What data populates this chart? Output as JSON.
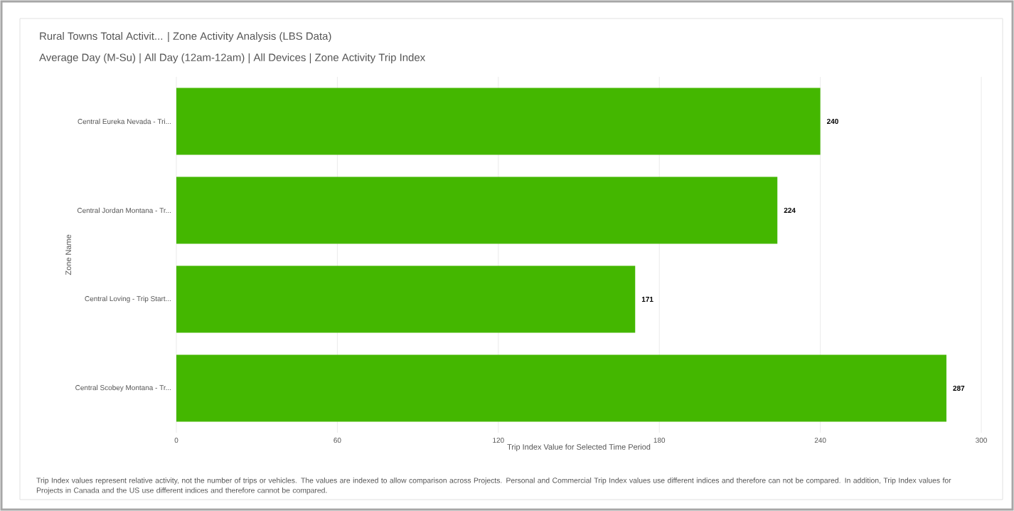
{
  "chart_data": {
    "type": "bar",
    "orientation": "horizontal",
    "title": "Rural Towns Total Activit... | Zone Activity Analysis (LBS Data)",
    "subtitle": "Average Day (M-Su) | All Day (12am-12am) | All Devices | Zone Activity Trip Index",
    "categories": [
      "Central Eureka Nevada - Tri...",
      "Central Jordan Montana - Tr...",
      "Central Loving - Trip Start...",
      "Central Scobey Montana - Tr..."
    ],
    "values": [
      240,
      224,
      171,
      287
    ],
    "color": "#44b700",
    "xlim": [
      0,
      300
    ],
    "xticks": [
      0,
      60,
      120,
      180,
      240,
      300
    ],
    "xlabel": "Trip Index Value for Selected Time Period",
    "ylabel": "Zone Name",
    "grid": "x",
    "data_labels": true,
    "annotations": [
      "Trip Index values represent relative activity, not the number of trips or vehicles. The values are indexed to allow comparison across Projects. Personal and Commercial Trip Index values use different indices and therefore can not be compared. In addition, Trip Index values for Projects in Canada and the US use different indices and therefore cannot be compared."
    ]
  }
}
